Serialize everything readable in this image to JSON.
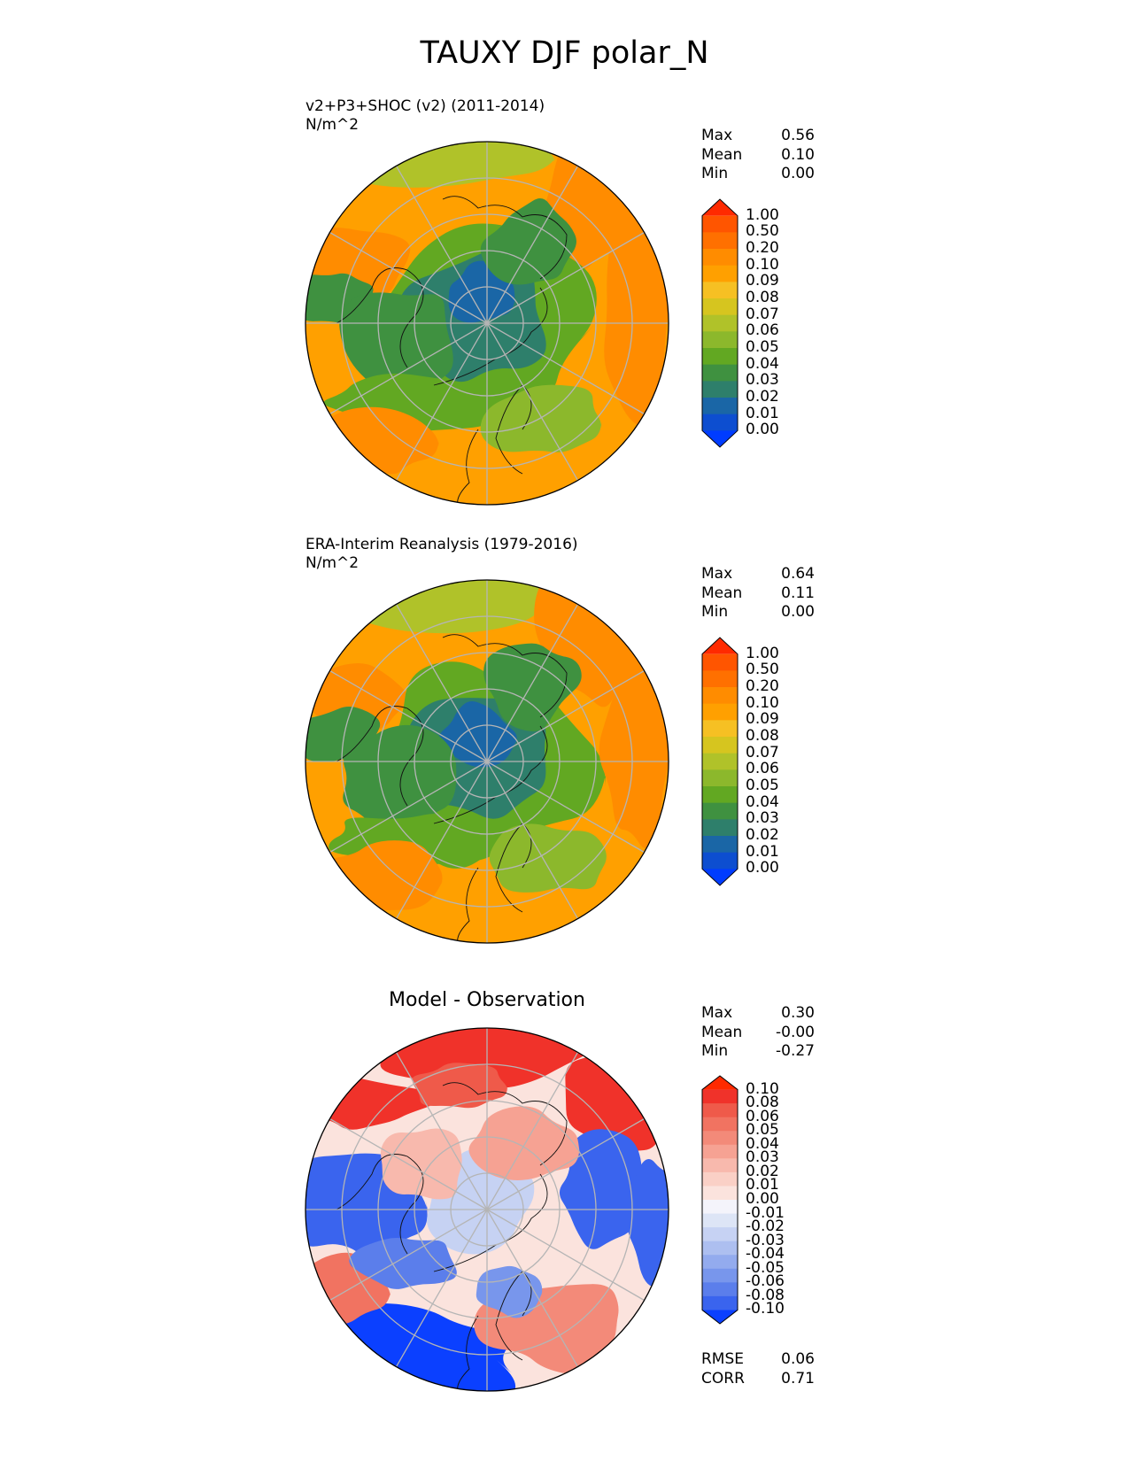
{
  "figure": {
    "title": "TAUXY DJF polar_N"
  },
  "panels": [
    {
      "title_line1": "v2+P3+SHOC (v2) (2011-2014)",
      "units": "N/m^2",
      "stats": [
        {
          "label": "Max",
          "value": "0.56"
        },
        {
          "label": "Mean",
          "value": "0.10"
        },
        {
          "label": "Min",
          "value": "0.00"
        }
      ]
    },
    {
      "title_line1": "ERA-Interim Reanalysis (1979-2016)",
      "units": "N/m^2",
      "stats": [
        {
          "label": "Max",
          "value": "0.64"
        },
        {
          "label": "Mean",
          "value": "0.11"
        },
        {
          "label": "Min",
          "value": "0.00"
        }
      ]
    },
    {
      "title": "Model - Observation",
      "stats": [
        {
          "label": "Max",
          "value": "0.30"
        },
        {
          "label": "Mean",
          "value": "-0.00"
        },
        {
          "label": "Min",
          "value": "-0.27"
        }
      ],
      "metrics": [
        {
          "label": "RMSE",
          "value": "0.06"
        },
        {
          "label": "CORR",
          "value": "0.71"
        }
      ]
    }
  ],
  "colorbars": {
    "seq": {
      "labels": [
        "1.00",
        "0.50",
        "0.20",
        "0.10",
        "0.09",
        "0.08",
        "0.07",
        "0.06",
        "0.05",
        "0.04",
        "0.03",
        "0.02",
        "0.01",
        "0.00"
      ],
      "colors": [
        "#ff2a00",
        "#ff5500",
        "#ff7000",
        "#ff8c00",
        "#ffa000",
        "#f6c023",
        "#d6c51f",
        "#b0c229",
        "#8cb82c",
        "#62a822",
        "#3f9140",
        "#2e7f6b",
        "#1a66a6",
        "#0d4ed0",
        "#003cff"
      ]
    },
    "div": {
      "labels": [
        "0.10",
        "0.08",
        "0.06",
        "0.05",
        "0.04",
        "0.03",
        "0.02",
        "0.01",
        "0.00",
        "-0.01",
        "-0.02",
        "-0.03",
        "-0.04",
        "-0.05",
        "-0.06",
        "-0.08",
        "-0.10"
      ],
      "colors": [
        "#ff2a00",
        "#f0322a",
        "#ef5a4a",
        "#f17361",
        "#f38a79",
        "#f6a293",
        "#f8b9ad",
        "#fad0c6",
        "#fbe3dd",
        "#f4f4fb",
        "#dde5f6",
        "#c6d2f3",
        "#adbff0",
        "#93abee",
        "#7896ec",
        "#5b7eeb",
        "#3a64ee",
        "#0b40ff"
      ]
    }
  },
  "chart_data": [
    {
      "type": "heatmap",
      "projection": "north polar stereographic",
      "title": "v2+P3+SHOC (v2) (2011-2014)",
      "units": "N/m^2",
      "variable": "TAUXY",
      "season": "DJF",
      "stats": {
        "max": 0.56,
        "mean": 0.1,
        "min": 0.0
      },
      "levels": [
        0.0,
        0.01,
        0.02,
        0.03,
        0.04,
        0.05,
        0.06,
        0.07,
        0.08,
        0.09,
        0.1,
        0.2,
        0.5,
        1.0
      ]
    },
    {
      "type": "heatmap",
      "projection": "north polar stereographic",
      "title": "ERA-Interim Reanalysis (1979-2016)",
      "units": "N/m^2",
      "variable": "TAUXY",
      "season": "DJF",
      "stats": {
        "max": 0.64,
        "mean": 0.11,
        "min": 0.0
      },
      "levels": [
        0.0,
        0.01,
        0.02,
        0.03,
        0.04,
        0.05,
        0.06,
        0.07,
        0.08,
        0.09,
        0.1,
        0.2,
        0.5,
        1.0
      ]
    },
    {
      "type": "heatmap",
      "projection": "north polar stereographic",
      "title": "Model - Observation",
      "stats": {
        "max": 0.3,
        "mean": -0.0,
        "min": -0.27
      },
      "metrics": {
        "rmse": 0.06,
        "corr": 0.71
      },
      "levels": [
        -0.1,
        -0.08,
        -0.06,
        -0.05,
        -0.04,
        -0.03,
        -0.02,
        -0.01,
        0.0,
        0.01,
        0.02,
        0.03,
        0.04,
        0.05,
        0.06,
        0.08,
        0.1
      ]
    }
  ]
}
